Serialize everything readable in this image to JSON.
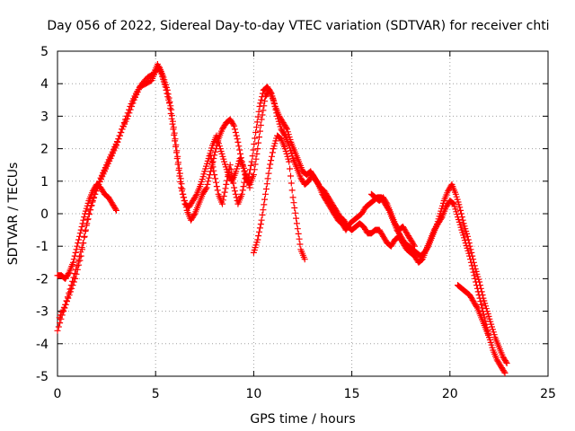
{
  "chart_data": {
    "type": "scatter",
    "marker": "+",
    "title": "Day 056 of 2022, Sidereal Day-to-day VTEC variation (SDTVAR) for receiver chti",
    "xlabel": "GPS time / hours",
    "ylabel": "SDTVAR / TECUs",
    "xlim": [
      0,
      25
    ],
    "ylim": [
      -5,
      5
    ],
    "xticks": [
      0,
      5,
      10,
      15,
      20,
      25
    ],
    "yticks": [
      -5,
      -4,
      -3,
      -2,
      -1,
      0,
      1,
      2,
      3,
      4,
      5
    ],
    "grid": true,
    "series": [
      {
        "name": "SDTVAR",
        "color": "#ff0000",
        "tracks": [
          [
            [
              0.0,
              -3.6
            ],
            [
              0.3,
              -3.0
            ],
            [
              0.6,
              -2.5
            ],
            [
              0.9,
              -2.0
            ],
            [
              1.2,
              -1.3
            ],
            [
              1.5,
              -0.3
            ],
            [
              1.8,
              0.4
            ],
            [
              2.1,
              0.9
            ],
            [
              2.4,
              1.3
            ],
            [
              2.7,
              1.7
            ],
            [
              3.0,
              2.1
            ],
            [
              3.3,
              2.6
            ],
            [
              3.6,
              3.0
            ],
            [
              3.9,
              3.5
            ],
            [
              4.2,
              3.9
            ],
            [
              4.5,
              4.0
            ],
            [
              4.8,
              4.1
            ],
            [
              5.0,
              4.4
            ],
            [
              5.2,
              4.5
            ],
            [
              5.4,
              4.2
            ],
            [
              5.6,
              3.8
            ],
            [
              5.8,
              3.2
            ],
            [
              6.0,
              2.3
            ],
            [
              6.2,
              1.4
            ],
            [
              6.4,
              0.6
            ],
            [
              6.6,
              0.1
            ],
            [
              6.8,
              -0.2
            ],
            [
              7.0,
              0.0
            ],
            [
              7.2,
              0.3
            ],
            [
              7.4,
              0.6
            ],
            [
              7.6,
              0.8
            ],
            [
              7.8,
              1.3
            ],
            [
              8.0,
              1.8
            ],
            [
              8.2,
              2.3
            ],
            [
              8.4,
              2.6
            ],
            [
              8.6,
              2.8
            ],
            [
              8.8,
              2.9
            ],
            [
              9.0,
              2.7
            ],
            [
              9.2,
              2.2
            ],
            [
              9.4,
              1.6
            ],
            [
              9.6,
              1.1
            ],
            [
              9.8,
              0.9
            ],
            [
              10.0,
              1.2
            ],
            [
              10.2,
              2.0
            ],
            [
              10.4,
              2.9
            ],
            [
              10.6,
              3.6
            ],
            [
              10.8,
              3.8
            ],
            [
              11.0,
              3.5
            ],
            [
              11.2,
              3.0
            ],
            [
              11.4,
              2.6
            ],
            [
              11.6,
              2.4
            ],
            [
              11.8,
              2.1
            ],
            [
              12.0,
              1.7
            ],
            [
              12.2,
              1.4
            ],
            [
              12.4,
              1.1
            ],
            [
              12.6,
              0.9
            ],
            [
              12.8,
              1.0
            ],
            [
              13.0,
              1.2
            ],
            [
              13.2,
              1.0
            ],
            [
              13.4,
              0.8
            ],
            [
              13.6,
              0.7
            ],
            [
              13.8,
              0.5
            ],
            [
              14.0,
              0.3
            ],
            [
              14.2,
              0.1
            ],
            [
              14.4,
              -0.1
            ],
            [
              14.6,
              -0.2
            ],
            [
              14.8,
              -0.4
            ],
            [
              15.0,
              -0.5
            ],
            [
              15.2,
              -0.4
            ],
            [
              15.4,
              -0.3
            ],
            [
              15.6,
              -0.4
            ],
            [
              15.8,
              -0.6
            ],
            [
              16.0,
              -0.6
            ],
            [
              16.2,
              -0.5
            ],
            [
              16.4,
              -0.5
            ],
            [
              16.6,
              -0.7
            ],
            [
              16.8,
              -0.9
            ],
            [
              17.0,
              -1.0
            ],
            [
              17.2,
              -0.8
            ],
            [
              17.4,
              -0.7
            ],
            [
              17.6,
              -0.9
            ],
            [
              17.8,
              -1.1
            ],
            [
              18.0,
              -1.2
            ],
            [
              18.2,
              -1.3
            ],
            [
              18.4,
              -1.5
            ],
            [
              18.6,
              -1.4
            ],
            [
              18.8,
              -1.1
            ],
            [
              19.0,
              -0.8
            ],
            [
              19.2,
              -0.5
            ],
            [
              19.4,
              -0.3
            ],
            [
              19.6,
              -0.1
            ],
            [
              19.8,
              0.2
            ],
            [
              20.0,
              0.4
            ],
            [
              20.2,
              0.3
            ],
            [
              20.4,
              -0.1
            ],
            [
              20.6,
              -0.5
            ],
            [
              20.8,
              -0.9
            ],
            [
              21.0,
              -1.3
            ],
            [
              21.2,
              -1.8
            ],
            [
              21.4,
              -2.3
            ],
            [
              21.6,
              -2.8
            ],
            [
              21.8,
              -3.3
            ],
            [
              22.0,
              -3.8
            ],
            [
              22.2,
              -4.2
            ],
            [
              22.4,
              -4.5
            ],
            [
              22.6,
              -4.7
            ],
            [
              22.8,
              -4.9
            ]
          ],
          [
            [
              0.1,
              -3.2
            ],
            [
              0.4,
              -2.8
            ],
            [
              0.7,
              -2.2
            ],
            [
              1.0,
              -1.6
            ],
            [
              1.3,
              -0.9
            ],
            [
              1.6,
              0.0
            ],
            [
              1.9,
              0.6
            ],
            [
              2.2,
              1.1
            ],
            [
              2.5,
              1.5
            ],
            [
              2.8,
              1.9
            ],
            [
              3.1,
              2.3
            ],
            [
              3.4,
              2.8
            ],
            [
              3.7,
              3.3
            ],
            [
              4.0,
              3.7
            ],
            [
              4.3,
              4.0
            ],
            [
              4.6,
              4.2
            ],
            [
              4.9,
              4.3
            ],
            [
              5.1,
              4.6
            ],
            [
              5.3,
              4.3
            ],
            [
              5.5,
              3.9
            ],
            [
              5.7,
              3.4
            ],
            [
              5.9,
              2.6
            ],
            [
              6.1,
              1.7
            ],
            [
              6.3,
              0.8
            ],
            [
              6.5,
              0.3
            ],
            [
              6.7,
              0.2
            ],
            [
              6.9,
              0.4
            ],
            [
              7.1,
              0.6
            ],
            [
              7.3,
              0.9
            ],
            [
              7.5,
              1.3
            ],
            [
              7.7,
              1.7
            ],
            [
              7.9,
              2.1
            ],
            [
              8.1,
              2.4
            ],
            [
              8.3,
              2.0
            ],
            [
              8.5,
              1.6
            ],
            [
              8.7,
              1.2
            ],
            [
              8.9,
              1.0
            ],
            [
              9.1,
              1.3
            ],
            [
              9.3,
              1.7
            ],
            [
              9.5,
              1.4
            ],
            [
              9.7,
              1.0
            ],
            [
              9.9,
              1.6
            ],
            [
              10.1,
              2.5
            ],
            [
              10.3,
              3.3
            ],
            [
              10.5,
              3.8
            ],
            [
              10.7,
              3.9
            ],
            [
              10.9,
              3.7
            ],
            [
              11.1,
              3.3
            ],
            [
              11.3,
              3.0
            ],
            [
              11.5,
              2.8
            ],
            [
              11.7,
              2.6
            ],
            [
              11.9,
              2.2
            ],
            [
              12.1,
              1.9
            ],
            [
              12.3,
              1.6
            ],
            [
              12.5,
              1.3
            ],
            [
              12.7,
              1.2
            ],
            [
              12.9,
              1.3
            ],
            [
              13.1,
              1.1
            ],
            [
              13.3,
              0.9
            ],
            [
              13.5,
              0.6
            ],
            [
              13.7,
              0.4
            ],
            [
              13.9,
              0.2
            ],
            [
              14.1,
              0.0
            ],
            [
              14.3,
              -0.2
            ],
            [
              14.5,
              -0.3
            ],
            [
              14.7,
              -0.5
            ],
            [
              14.9,
              -0.3
            ],
            [
              15.1,
              -0.2
            ],
            [
              15.3,
              -0.1
            ],
            [
              15.5,
              0.0
            ],
            [
              15.7,
              0.2
            ],
            [
              15.9,
              0.3
            ],
            [
              16.1,
              0.4
            ],
            [
              16.3,
              0.5
            ],
            [
              16.5,
              0.5
            ],
            [
              16.7,
              0.3
            ],
            [
              16.9,
              0.1
            ],
            [
              17.1,
              -0.2
            ],
            [
              17.3,
              -0.5
            ],
            [
              17.5,
              -0.7
            ],
            [
              17.7,
              -0.9
            ],
            [
              17.9,
              -1.0
            ],
            [
              18.1,
              -1.1
            ],
            [
              18.3,
              -1.2
            ],
            [
              18.5,
              -1.3
            ],
            [
              18.7,
              -1.2
            ],
            [
              18.9,
              -1.0
            ],
            [
              19.1,
              -0.7
            ],
            [
              19.3,
              -0.4
            ],
            [
              19.5,
              0.0
            ],
            [
              19.7,
              0.4
            ],
            [
              19.9,
              0.7
            ],
            [
              20.1,
              0.9
            ],
            [
              20.3,
              0.6
            ],
            [
              20.5,
              0.2
            ],
            [
              20.7,
              -0.3
            ],
            [
              20.9,
              -0.7
            ],
            [
              21.1,
              -1.2
            ],
            [
              21.3,
              -1.7
            ],
            [
              21.5,
              -2.1
            ],
            [
              21.7,
              -2.6
            ],
            [
              21.9,
              -3.0
            ],
            [
              22.1,
              -3.4
            ],
            [
              22.3,
              -3.8
            ],
            [
              22.5,
              -4.1
            ],
            [
              22.7,
              -4.4
            ],
            [
              22.9,
              -4.6
            ]
          ],
          [
            [
              0.0,
              -1.9
            ],
            [
              0.2,
              -1.9
            ],
            [
              0.4,
              -2.0
            ],
            [
              0.6,
              -1.8
            ],
            [
              0.8,
              -1.5
            ],
            [
              1.0,
              -1.0
            ],
            [
              1.2,
              -0.5
            ],
            [
              1.4,
              0.0
            ],
            [
              1.6,
              0.4
            ],
            [
              1.8,
              0.7
            ],
            [
              2.0,
              0.9
            ],
            [
              2.2,
              0.8
            ],
            [
              2.4,
              0.6
            ],
            [
              2.6,
              0.5
            ],
            [
              2.8,
              0.3
            ],
            [
              3.0,
              0.1
            ]
          ],
          [
            [
              7.8,
              1.8
            ],
            [
              8.0,
              1.2
            ],
            [
              8.2,
              0.6
            ],
            [
              8.4,
              0.3
            ],
            [
              8.6,
              0.9
            ],
            [
              8.8,
              1.5
            ],
            [
              9.0,
              0.8
            ],
            [
              9.2,
              0.3
            ],
            [
              9.4,
              0.6
            ],
            [
              9.6,
              1.2
            ],
            [
              9.8,
              0.8
            ]
          ],
          [
            [
              10.0,
              -1.2
            ],
            [
              10.2,
              -0.8
            ],
            [
              10.4,
              -0.2
            ],
            [
              10.6,
              0.6
            ],
            [
              10.8,
              1.4
            ],
            [
              11.0,
              2.0
            ],
            [
              11.2,
              2.4
            ],
            [
              11.4,
              2.3
            ],
            [
              11.6,
              2.0
            ],
            [
              11.8,
              1.6
            ],
            [
              12.0,
              0.5
            ],
            [
              12.2,
              -0.3
            ],
            [
              12.4,
              -1.1
            ],
            [
              12.6,
              -1.4
            ]
          ],
          [
            [
              16.0,
              0.6
            ],
            [
              16.2,
              0.5
            ],
            [
              16.4,
              0.4
            ],
            [
              16.6,
              0.5
            ],
            [
              16.8,
              0.3
            ],
            [
              17.0,
              0.0
            ],
            [
              17.2,
              -0.3
            ],
            [
              17.4,
              -0.5
            ],
            [
              17.6,
              -0.4
            ],
            [
              17.8,
              -0.6
            ],
            [
              18.0,
              -0.8
            ],
            [
              18.2,
              -1.0
            ]
          ],
          [
            [
              20.4,
              -2.2
            ],
            [
              20.6,
              -2.3
            ],
            [
              20.8,
              -2.4
            ],
            [
              21.0,
              -2.5
            ],
            [
              21.2,
              -2.7
            ],
            [
              21.4,
              -2.9
            ],
            [
              21.6,
              -3.2
            ],
            [
              21.8,
              -3.5
            ],
            [
              22.0,
              -3.8
            ]
          ]
        ]
      }
    ]
  }
}
